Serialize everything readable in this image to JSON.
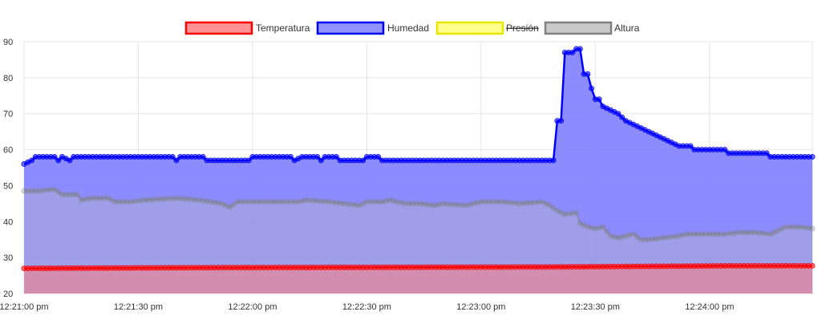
{
  "chart_data": {
    "type": "area",
    "title": "",
    "xlabel": "",
    "ylabel": "",
    "ylim": [
      20,
      90
    ],
    "y_ticks": [
      20,
      30,
      40,
      50,
      60,
      70,
      80,
      90
    ],
    "x_ticks": [
      "12:21:00 pm",
      "12:21:30 pm",
      "12:22:00 pm",
      "12:22:30 pm",
      "12:23:00 pm",
      "12:23:30 pm",
      "12:24:00 pm"
    ],
    "x_range_seconds_after_12_21_00": [
      0,
      207
    ],
    "grid": true,
    "legend_position": "top-center",
    "series": [
      {
        "name": "Temperatura",
        "hidden": false,
        "stroke": "#ff0000",
        "fill": "#ff8080",
        "points": [
          [
            0,
            27.0
          ],
          [
            50,
            27.2
          ],
          [
            100,
            27.3
          ],
          [
            140,
            27.4
          ],
          [
            170,
            27.6
          ],
          [
            185,
            27.7
          ],
          [
            207,
            27.7
          ]
        ]
      },
      {
        "name": "Humedad",
        "hidden": false,
        "stroke": "#0000ff",
        "fill": "#8080ff",
        "points": [
          [
            0,
            56
          ],
          [
            2,
            57
          ],
          [
            3,
            58
          ],
          [
            8,
            58
          ],
          [
            9,
            57
          ],
          [
            10,
            58
          ],
          [
            12,
            57
          ],
          [
            13,
            58
          ],
          [
            39,
            58
          ],
          [
            40,
            57
          ],
          [
            41,
            58
          ],
          [
            47,
            58
          ],
          [
            48,
            57
          ],
          [
            59,
            57
          ],
          [
            60,
            58
          ],
          [
            70,
            58
          ],
          [
            71,
            57
          ],
          [
            73,
            58
          ],
          [
            77,
            58
          ],
          [
            78,
            57
          ],
          [
            79,
            58
          ],
          [
            82,
            58
          ],
          [
            83,
            57
          ],
          [
            89,
            57
          ],
          [
            90,
            58
          ],
          [
            93,
            58
          ],
          [
            94,
            57
          ],
          [
            139,
            57
          ],
          [
            140,
            68
          ],
          [
            141,
            68
          ],
          [
            142,
            87
          ],
          [
            144,
            87
          ],
          [
            145,
            88
          ],
          [
            146,
            88
          ],
          [
            147,
            81
          ],
          [
            148,
            81
          ],
          [
            149,
            77
          ],
          [
            150,
            74
          ],
          [
            151,
            74
          ],
          [
            152,
            72
          ],
          [
            154,
            71
          ],
          [
            156,
            70
          ],
          [
            158,
            68
          ],
          [
            160,
            67
          ],
          [
            162,
            66
          ],
          [
            164,
            65
          ],
          [
            166,
            64
          ],
          [
            168,
            63
          ],
          [
            170,
            62
          ],
          [
            172,
            61
          ],
          [
            175,
            61
          ],
          [
            176,
            60
          ],
          [
            184,
            60
          ],
          [
            185,
            59
          ],
          [
            195,
            59
          ],
          [
            196,
            58
          ],
          [
            207,
            58
          ]
        ]
      },
      {
        "name": "Presión",
        "hidden": true,
        "stroke": "#e6e600",
        "fill": "#ffff80",
        "points": []
      },
      {
        "name": "Altura",
        "hidden": false,
        "stroke": "#808080",
        "fill": "#c0c0c0",
        "points": [
          [
            0,
            48.5
          ],
          [
            4,
            48.5
          ],
          [
            8,
            49
          ],
          [
            10,
            47.5
          ],
          [
            14,
            47.5
          ],
          [
            15,
            46
          ],
          [
            18,
            46.5
          ],
          [
            22,
            46.5
          ],
          [
            24,
            45.5
          ],
          [
            28,
            45.5
          ],
          [
            32,
            46
          ],
          [
            40,
            46.5
          ],
          [
            46,
            46
          ],
          [
            52,
            45
          ],
          [
            54,
            44
          ],
          [
            56,
            45.5
          ],
          [
            60,
            45.5
          ],
          [
            66,
            45.5
          ],
          [
            72,
            45.5
          ],
          [
            74,
            46
          ],
          [
            80,
            45.5
          ],
          [
            84,
            45
          ],
          [
            88,
            44.5
          ],
          [
            90,
            45.5
          ],
          [
            94,
            45.5
          ],
          [
            96,
            46
          ],
          [
            100,
            45
          ],
          [
            104,
            45
          ],
          [
            108,
            44.5
          ],
          [
            110,
            45
          ],
          [
            116,
            44.5
          ],
          [
            120,
            45.5
          ],
          [
            126,
            45.5
          ],
          [
            130,
            45
          ],
          [
            136,
            45.5
          ],
          [
            138,
            44.5
          ],
          [
            140,
            43
          ],
          [
            142,
            42
          ],
          [
            145,
            42.5
          ],
          [
            146,
            39.5
          ],
          [
            148,
            38.5
          ],
          [
            150,
            38
          ],
          [
            152,
            38.5
          ],
          [
            154,
            36
          ],
          [
            156,
            35.5
          ],
          [
            158,
            36
          ],
          [
            160,
            36.5
          ],
          [
            162,
            35
          ],
          [
            164,
            35
          ],
          [
            168,
            35.5
          ],
          [
            172,
            36
          ],
          [
            174,
            36.5
          ],
          [
            178,
            36.5
          ],
          [
            184,
            36.5
          ],
          [
            188,
            37
          ],
          [
            192,
            37
          ],
          [
            196,
            36.5
          ],
          [
            198,
            37.5
          ],
          [
            200,
            38.5
          ],
          [
            204,
            38.5
          ],
          [
            207,
            38
          ]
        ]
      }
    ]
  }
}
